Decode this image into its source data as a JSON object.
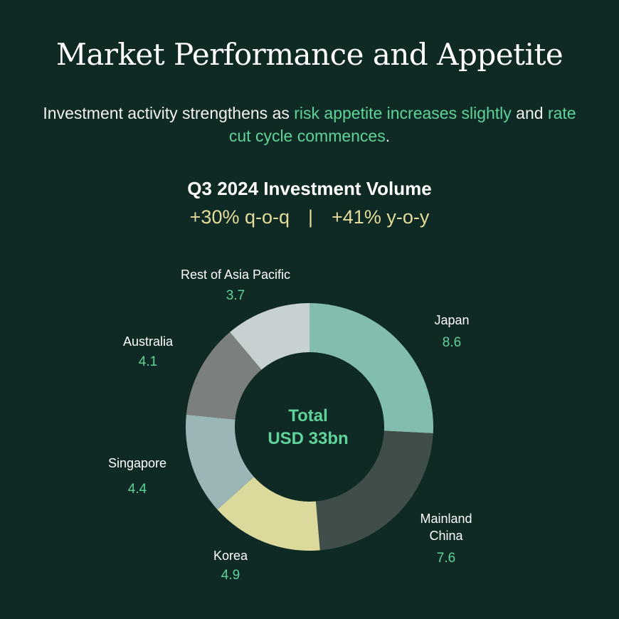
{
  "title": "Market Performance and Appetite",
  "subtitle": {
    "part1": "Investment activity strengthens as ",
    "hl1": "risk appetite increases slightly",
    "part2": " and ",
    "hl2": "rate cut cycle commences",
    "part3": "."
  },
  "volume": {
    "title": "Q3 2024 Investment Volume",
    "qoq": "+30% q-o-q",
    "separator": "|",
    "yoy": "+41% y-o-y"
  },
  "chart_data": {
    "type": "pie",
    "style": "donut",
    "center_label_line1": "Total",
    "center_label_line2": "USD 33bn",
    "slices": [
      {
        "label": "Japan",
        "value": 8.6,
        "display": "8.6",
        "color": "#82bdaf"
      },
      {
        "label": "Mainland China",
        "label_lines": [
          "Mainland",
          "China"
        ],
        "value": 7.6,
        "display": "7.6",
        "color": "#3f4e4b"
      },
      {
        "label": "Korea",
        "value": 4.9,
        "display": "4.9",
        "color": "#dcd99c"
      },
      {
        "label": "Singapore",
        "value": 4.4,
        "display": "4.4",
        "color": "#9ab6b6"
      },
      {
        "label": "Australia",
        "value": 4.1,
        "display": "4.1",
        "color": "#7b807c"
      },
      {
        "label": "Rest of Asia Pacific",
        "value": 3.7,
        "display": "3.7",
        "color": "#c8d1d1"
      }
    ]
  }
}
